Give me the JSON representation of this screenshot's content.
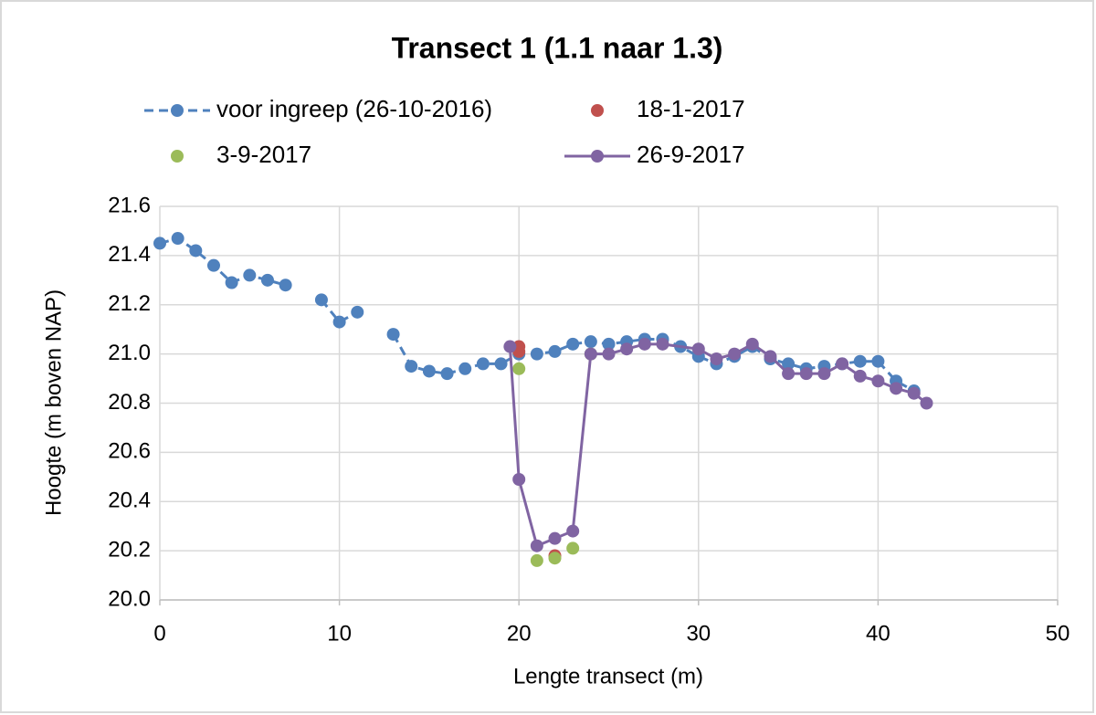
{
  "chart_data": {
    "type": "scatter",
    "title": "Transect 1 (1.1 naar 1.3)",
    "x_label": "Lengte transect (m)",
    "y_label": "Hoogte (m boven NAP)",
    "xlim": [
      0,
      50
    ],
    "xticks": [
      0,
      10,
      20,
      30,
      40,
      50
    ],
    "ylim": [
      20,
      21.6
    ],
    "yticks": [
      {
        "value": 20,
        "label": "20.0"
      },
      20.2,
      20.4,
      20.6,
      20.8,
      {
        "value": 21,
        "label": "21.0"
      },
      21.2,
      21.4,
      21.6
    ],
    "grid": true,
    "series": [
      {
        "name": "voor ingreep (26-10-2016)",
        "color": "#4f81bd",
        "line": "dashed",
        "x": [
          0,
          1,
          2,
          3,
          4,
          5,
          6,
          7,
          8,
          9,
          10,
          11,
          12,
          13,
          14,
          15,
          16,
          17,
          18,
          19,
          20,
          21,
          22,
          23,
          24,
          25,
          26,
          27,
          28,
          29,
          30,
          31,
          32,
          33,
          34,
          35,
          36,
          37,
          38,
          39,
          40,
          41,
          42
        ],
        "values": [
          21.45,
          21.47,
          21.42,
          21.36,
          21.29,
          21.32,
          21.3,
          21.28,
          null,
          21.22,
          21.13,
          21.17,
          null,
          21.08,
          20.95,
          20.93,
          20.92,
          20.94,
          20.96,
          20.96,
          21.0,
          21.0,
          21.01,
          21.04,
          21.05,
          21.04,
          21.05,
          21.06,
          21.06,
          21.03,
          20.99,
          20.96,
          20.99,
          21.03,
          20.98,
          20.96,
          20.94,
          20.95,
          20.96,
          20.97,
          20.97,
          20.89,
          20.85
        ]
      },
      {
        "name": "18-1-2017",
        "color": "#c0504d",
        "line": "none",
        "x": [
          20,
          20,
          22
        ],
        "values": [
          21.03,
          21.01,
          20.18
        ]
      },
      {
        "name": "3-9-2017",
        "color": "#9bbb59",
        "line": "none",
        "x": [
          20,
          21,
          22,
          23,
          24
        ],
        "values": [
          20.94,
          20.16,
          20.17,
          20.21,
          21.0
        ]
      },
      {
        "name": "26-9-2017",
        "color": "#8064a2",
        "line": "solid",
        "x": [
          19.5,
          20,
          21,
          22,
          23,
          24,
          25,
          26,
          27,
          28,
          30,
          31,
          32,
          33,
          34,
          35,
          36,
          37,
          38,
          39,
          40,
          41,
          42,
          42.7
        ],
        "values": [
          21.03,
          20.49,
          20.22,
          20.25,
          20.28,
          21.0,
          21.0,
          21.02,
          21.04,
          21.04,
          21.02,
          20.98,
          21.0,
          21.04,
          20.99,
          20.92,
          20.92,
          20.92,
          20.96,
          20.91,
          20.89,
          20.86,
          20.84,
          20.8
        ]
      }
    ]
  }
}
